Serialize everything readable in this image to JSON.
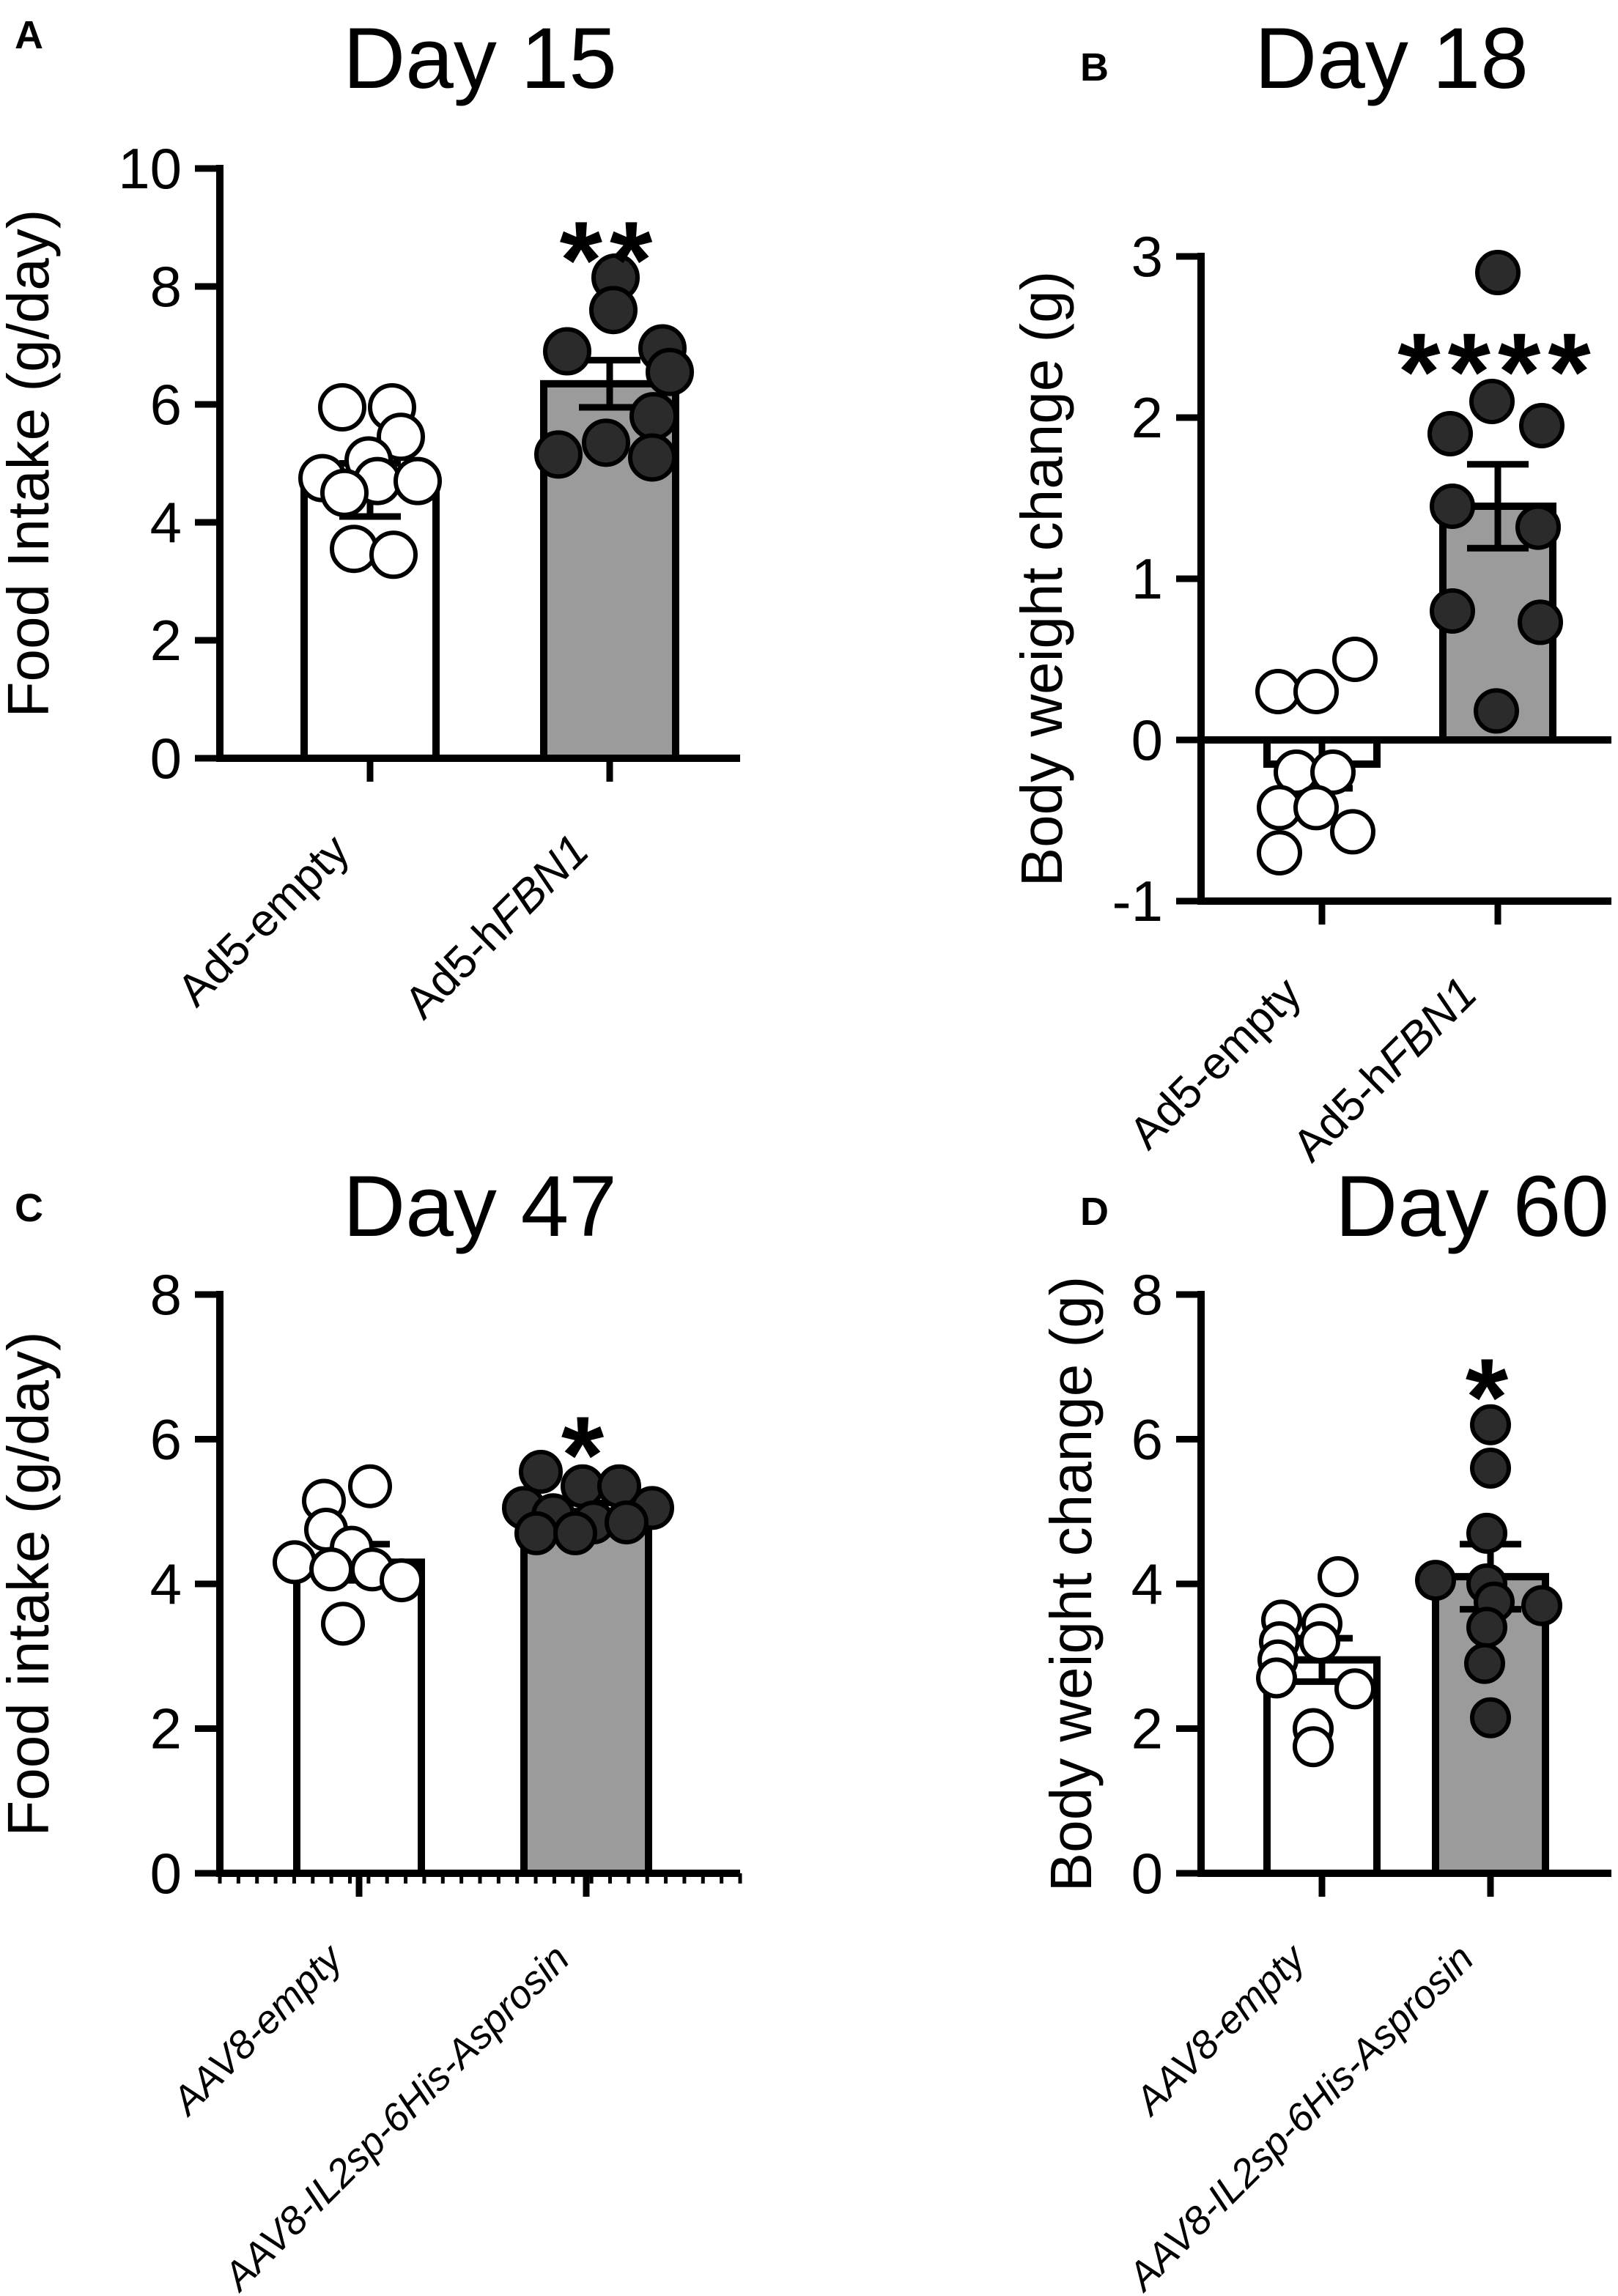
{
  "figure": {
    "background": "#ffffff",
    "colors": {
      "ink": "#000000",
      "bar_gray": "#9b9b9b",
      "bar_white": "#ffffff",
      "point_dark": "#2b2b2b",
      "point_open_fill": "#ffffff"
    }
  },
  "chart_data": [
    {
      "type": "bar",
      "panel_letter": "A",
      "title": "Day 15",
      "ylabel": "Food Intake (g/day)",
      "ylim": [
        0,
        10
      ],
      "yticks": [
        0,
        2,
        4,
        6,
        8,
        10
      ],
      "baseline": 0,
      "zero_line": false,
      "x_minor_ticks": false,
      "significance": {
        "label": "**",
        "value": 8.9,
        "group_index": 1
      },
      "categories": [
        "Ad5-empty",
        "Ad5-hFBN1"
      ],
      "series": [
        {
          "name": "Ad5-empty",
          "label_segments": [
            {
              "text": "Ad5-empty",
              "italic": false
            }
          ],
          "bar": "white",
          "point_style": "open",
          "mean": 4.55,
          "sem": 0.45,
          "points": [
            [
              -38,
              5.95
            ],
            [
              30,
              5.95
            ],
            [
              42,
              5.45
            ],
            [
              -2,
              5.05
            ],
            [
              -65,
              4.75
            ],
            [
              10,
              4.7
            ],
            [
              65,
              4.7
            ],
            [
              -35,
              4.5
            ],
            [
              -22,
              3.55
            ],
            [
              32,
              3.45
            ]
          ]
        },
        {
          "name": "Ad5-hFBN1",
          "label_segments": [
            {
              "text": "Ad5-h",
              "italic": false
            },
            {
              "text": "FBN1",
              "italic": true
            }
          ],
          "bar": "gray",
          "point_style": "filled",
          "mean": 6.35,
          "sem": 0.4,
          "points": [
            [
              8,
              8.15
            ],
            [
              5,
              7.6
            ],
            [
              -58,
              6.9
            ],
            [
              72,
              6.95
            ],
            [
              82,
              6.55
            ],
            [
              60,
              5.8
            ],
            [
              -5,
              5.35
            ],
            [
              -70,
              5.15
            ],
            [
              58,
              5.1
            ]
          ]
        }
      ]
    },
    {
      "type": "bar",
      "panel_letter": "B",
      "title": "Day 18",
      "ylabel": "Body weight change (g)",
      "ylim": [
        -1,
        3
      ],
      "yticks": [
        -1,
        0,
        1,
        2,
        3
      ],
      "baseline": 0,
      "zero_line": true,
      "x_minor_ticks": false,
      "significance": {
        "label": "****",
        "value": 2.45,
        "group_index": 1
      },
      "categories": [
        "Ad5-empty",
        "Ad5-hFBN1"
      ],
      "series": [
        {
          "name": "Ad5-empty",
          "label_segments": [
            {
              "text": "Ad5-empty",
              "italic": false
            }
          ],
          "bar": "white",
          "point_style": "open",
          "mean": -0.15,
          "sem": 0.15,
          "points": [
            [
              -60,
              0.3
            ],
            [
              -8,
              0.3
            ],
            [
              45,
              0.5
            ],
            [
              -35,
              -0.2
            ],
            [
              15,
              -0.2
            ],
            [
              -58,
              -0.42
            ],
            [
              -8,
              -0.42
            ],
            [
              42,
              -0.57
            ],
            [
              -58,
              -0.7
            ]
          ]
        },
        {
          "name": "Ad5-hFBN1",
          "label_segments": [
            {
              "text": "Ad5-h",
              "italic": false
            },
            {
              "text": "FBN1",
              "italic": true
            }
          ],
          "bar": "gray",
          "point_style": "filled",
          "mean": 1.45,
          "sem": 0.26,
          "points": [
            [
              0,
              2.9
            ],
            [
              -8,
              2.1
            ],
            [
              -65,
              1.9
            ],
            [
              60,
              1.95
            ],
            [
              -62,
              1.45
            ],
            [
              55,
              1.32
            ],
            [
              -62,
              0.8
            ],
            [
              58,
              0.73
            ],
            [
              -2,
              0.18
            ]
          ]
        }
      ]
    },
    {
      "type": "bar",
      "panel_letter": "C",
      "title": "Day 47",
      "ylabel": "Food intake (g/day)",
      "ylim": [
        0,
        8
      ],
      "yticks": [
        0,
        2,
        4,
        6,
        8
      ],
      "baseline": 0,
      "zero_line": false,
      "x_minor_ticks": true,
      "significance": {
        "label": "*",
        "value": 6.15,
        "group_index": 1
      },
      "categories": [
        "AAV8-empty",
        "AAV8-IL2sp-6His-Asprosin"
      ],
      "series": [
        {
          "name": "AAV8-empty",
          "label_segments": [
            {
              "text": "AAV8-empty",
              "italic": true
            }
          ],
          "bar": "white",
          "point_style": "open",
          "mean": 4.3,
          "sem": 0.25,
          "points": [
            [
              15,
              5.35
            ],
            [
              -48,
              5.15
            ],
            [
              -45,
              4.75
            ],
            [
              -10,
              4.5
            ],
            [
              -88,
              4.3
            ],
            [
              -38,
              4.2
            ],
            [
              18,
              4.2
            ],
            [
              58,
              4.05
            ],
            [
              -22,
              3.45
            ]
          ]
        },
        {
          "name": "AAV8-IL2sp-6His-Asprosin",
          "label_segments": [
            {
              "text": "AAV8-IL2sp-6His-Asprosin",
              "italic": true
            }
          ],
          "bar": "gray",
          "point_style": "filled",
          "mean": 5.0,
          "sem": 0.12,
          "points": [
            [
              -62,
              5.55
            ],
            [
              -5,
              5.35
            ],
            [
              45,
              5.35
            ],
            [
              -85,
              5.05
            ],
            [
              90,
              5.05
            ],
            [
              -45,
              4.95
            ],
            [
              10,
              4.85
            ],
            [
              55,
              4.85
            ],
            [
              -68,
              4.7
            ],
            [
              -15,
              4.7
            ]
          ]
        }
      ]
    },
    {
      "type": "bar",
      "panel_letter": "D",
      "title": "Day 60",
      "ylabel": "Body weight change (g)",
      "ylim": [
        0,
        8
      ],
      "yticks": [
        0,
        2,
        4,
        6,
        8
      ],
      "baseline": 0,
      "zero_line": false,
      "x_minor_ticks": false,
      "significance": {
        "label": "*",
        "value": 6.95,
        "group_index": 1
      },
      "categories": [
        "AAV8-empty",
        "AAV8-IL2sp-6His-Asprosin"
      ],
      "series": [
        {
          "name": "AAV8-empty",
          "label_segments": [
            {
              "text": "AAV8-empty",
              "italic": true
            }
          ],
          "bar": "white",
          "point_style": "open",
          "mean": 2.95,
          "sem": 0.3,
          "points": [
            [
              22,
              4.1
            ],
            [
              -55,
              3.5
            ],
            [
              0,
              3.45
            ],
            [
              -58,
              3.2
            ],
            [
              -3,
              3.2
            ],
            [
              -60,
              2.95
            ],
            [
              -62,
              2.7
            ],
            [
              45,
              2.55
            ],
            [
              -12,
              2.0
            ],
            [
              -12,
              1.75
            ]
          ]
        },
        {
          "name": "AAV8-IL2sp-6His-Asprosin",
          "label_segments": [
            {
              "text": "AAV8-IL2sp-6His-Asprosin",
              "italic": true
            }
          ],
          "bar": "gray",
          "point_style": "filled",
          "mean": 4.1,
          "sem": 0.45,
          "points": [
            [
              0,
              6.2
            ],
            [
              0,
              5.6
            ],
            [
              -5,
              4.7
            ],
            [
              -75,
              4.05
            ],
            [
              -5,
              4.0
            ],
            [
              70,
              3.7
            ],
            [
              5,
              3.75
            ],
            [
              -5,
              3.4
            ],
            [
              -8,
              2.9
            ],
            [
              0,
              2.15
            ]
          ]
        }
      ]
    }
  ]
}
